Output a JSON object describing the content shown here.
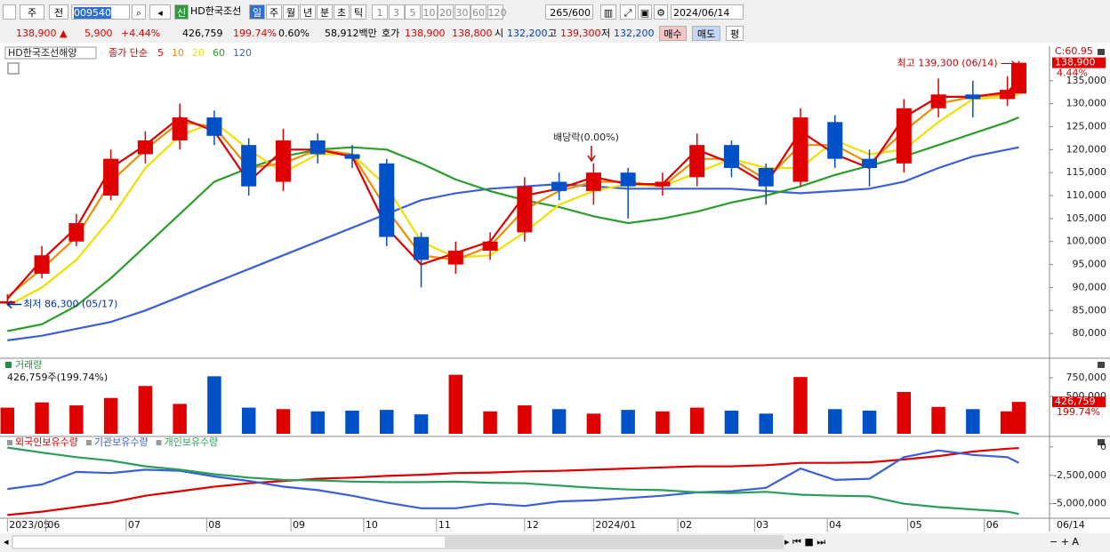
{
  "toolbar": {
    "period": "주",
    "prev": "전",
    "code": "009540",
    "badge": "신",
    "name": "HD한국조선",
    "units": [
      "일",
      "주",
      "월",
      "년",
      "분",
      "초",
      "틱"
    ],
    "minutes": [
      "1",
      "3",
      "5",
      "10",
      "20",
      "30",
      "60",
      "120"
    ],
    "count": "265",
    "max": "/600",
    "date": "2024/06/14"
  },
  "quote": {
    "price": "138,900 ▲",
    "change": "5,900",
    "rate": "+4.44%",
    "volume": "426,759",
    "volume_rate": "199.74%",
    "turnover": "0.60%",
    "amount": "58,912백만",
    "ask_label": "호가",
    "ask": "138,900",
    "bid": "138,800",
    "open_label": "시",
    "open": "132,200",
    "high_label": "고",
    "high": "139,300",
    "low_label": "저",
    "low": "132,200",
    "buy": "매수",
    "sell": "매도",
    "avg": "평"
  },
  "chart_data": [
    {
      "type": "candlestick",
      "title": "HD한국조선해양",
      "ma_label": "종가 단순",
      "x": [
        0,
        9,
        18,
        27,
        36,
        45,
        54,
        63,
        72,
        81,
        90,
        99,
        108,
        117,
        126,
        135,
        144,
        153,
        162,
        171,
        180,
        189,
        198,
        207,
        216,
        225,
        234,
        243,
        252,
        261,
        264
      ],
      "open": [
        86500,
        93000,
        100000,
        110000,
        119000,
        122000,
        127000,
        121000,
        113000,
        122000,
        119000,
        117000,
        101000,
        95000,
        98000,
        102000,
        113000,
        111000,
        115000,
        112000,
        114000,
        121000,
        116000,
        113000,
        126000,
        118000,
        117000,
        129000,
        132000,
        131000,
        132200
      ],
      "high": [
        88500,
        99000,
        106000,
        120000,
        124000,
        130000,
        128500,
        122500,
        124500,
        123500,
        121000,
        118000,
        102000,
        100000,
        102000,
        114000,
        115000,
        117000,
        116000,
        115000,
        123500,
        122000,
        117000,
        129000,
        127500,
        120000,
        131000,
        135500,
        135000,
        136000,
        139300
      ],
      "low": [
        86300,
        92000,
        99000,
        109000,
        117000,
        120000,
        121000,
        110000,
        111000,
        117000,
        116000,
        99000,
        90000,
        93000,
        96000,
        100000,
        109000,
        108000,
        105000,
        110000,
        112000,
        114000,
        108000,
        112000,
        116000,
        112000,
        115000,
        127000,
        127000,
        129500,
        132200
      ],
      "close": [
        87000,
        97000,
        104000,
        118000,
        122000,
        127000,
        123000,
        112000,
        122000,
        119000,
        118000,
        101000,
        96000,
        98000,
        100000,
        112000,
        111000,
        115000,
        112000,
        113000,
        121000,
        116000,
        112000,
        127000,
        118000,
        116000,
        129000,
        132000,
        131000,
        133000,
        138900
      ],
      "up_color": "#e00000",
      "down_color": "#0050c8",
      "series": [
        {
          "name": "5",
          "color": "#dd0000",
          "values": [
            87500,
            96000,
            103000,
            116000,
            121000,
            127000,
            124000,
            113000,
            120000,
            120000,
            118500,
            103000,
            95000,
            97500,
            100000,
            110000,
            111500,
            114000,
            112500,
            112500,
            120000,
            117000,
            112500,
            124000,
            119000,
            116000,
            127000,
            131500,
            131500,
            132500,
            135000
          ]
        },
        {
          "name": "10",
          "color": "#f08c00",
          "values": [
            88000,
            94000,
            101000,
            113000,
            120000,
            126000,
            125000,
            116000,
            117000,
            120000,
            119000,
            107000,
            97000,
            96000,
            99000,
            107000,
            111000,
            113000,
            113000,
            112000,
            118000,
            118000,
            113500,
            121000,
            121000,
            117000,
            124000,
            130000,
            131500,
            132000,
            133500
          ]
        },
        {
          "name": "20",
          "color": "#f0e000",
          "values": [
            86000,
            90000,
            96000,
            105000,
            116000,
            123000,
            126000,
            120000,
            115000,
            119000,
            119000,
            112000,
            100000,
            96500,
            97000,
            102000,
            108000,
            111000,
            112500,
            112000,
            115000,
            118000,
            116000,
            116000,
            122000,
            119000,
            120000,
            126000,
            131000,
            131500,
            132000
          ]
        },
        {
          "name": "60",
          "color": "#2a9d2a",
          "values": [
            80500,
            82000,
            86000,
            92000,
            99000,
            106000,
            113000,
            116000,
            118500,
            120000,
            120500,
            120000,
            117000,
            113500,
            111000,
            109000,
            107500,
            105500,
            104000,
            105000,
            106500,
            108500,
            110000,
            112000,
            114500,
            116500,
            118500,
            121000,
            123500,
            126000,
            127000
          ]
        },
        {
          "name": "120",
          "color": "#3a5fd8",
          "values": [
            78500,
            79500,
            81000,
            82500,
            85000,
            88000,
            91000,
            94000,
            97000,
            100000,
            103000,
            106000,
            109000,
            110500,
            111500,
            112000,
            112500,
            112000,
            111500,
            111500,
            111500,
            111500,
            111000,
            110500,
            111000,
            111500,
            113000,
            116000,
            118500,
            120000,
            120500
          ]
        }
      ],
      "xlim": [
        -1,
        272
      ],
      "ylim": [
        74800,
        142500
      ],
      "yticks": [
        {
          "value": 80000,
          "label": "80,000"
        },
        {
          "value": 85000,
          "label": "85,000"
        },
        {
          "value": 90000,
          "label": "90,000"
        },
        {
          "value": 95000,
          "label": "95,000"
        },
        {
          "value": 100000,
          "label": "100,000"
        },
        {
          "value": 105000,
          "label": "105,000"
        },
        {
          "value": 110000,
          "label": "110,000"
        },
        {
          "value": 115000,
          "label": "115,000"
        },
        {
          "value": 120000,
          "label": "120,000"
        },
        {
          "value": 125000,
          "label": "125,000"
        },
        {
          "value": 130000,
          "label": "130,000"
        },
        {
          "value": 135000,
          "label": "135,000"
        }
      ],
      "max_label": "최고 139,300 (06/14)",
      "min_label": "최저 86,300 (05/17)",
      "dividend_label": "배당락(0.00%)",
      "c_label": "C:60.95",
      "current_label": "138,900",
      "change_label": "4.44%"
    },
    {
      "type": "bar",
      "title": "거래량",
      "subtitle": "426,759주(199.74%)",
      "values": [
        350000,
        420000,
        380000,
        480000,
        640000,
        400000,
        770000,
        350000,
        330000,
        300000,
        310000,
        320000,
        260000,
        790000,
        300000,
        380000,
        330000,
        270000,
        320000,
        300000,
        350000,
        310000,
        270000,
        760000,
        330000,
        310000,
        560000,
        360000,
        330000,
        300000,
        426759
      ],
      "ylim": [
        0,
        1000000
      ],
      "yticks": [
        {
          "value": 500000,
          "label": "500,000"
        },
        {
          "value": 750000,
          "label": "750,000"
        }
      ],
      "current_label": "426,759",
      "rate_label": "199.74%"
    },
    {
      "type": "line",
      "series": [
        {
          "name": "외국인보유수량",
          "color": "#dd0000",
          "values": [
            -6000000,
            -5700000,
            -5300000,
            -4900000,
            -4300000,
            -3900000,
            -3500000,
            -3200000,
            -3000000,
            -2800000,
            -2700000,
            -2550000,
            -2450000,
            -2300000,
            -2250000,
            -2150000,
            -2100000,
            -2000000,
            -1900000,
            -1800000,
            -1700000,
            -1700000,
            -1600000,
            -1400000,
            -1400000,
            -1350000,
            -1100000,
            -800000,
            -400000,
            -150000,
            -100000
          ]
        },
        {
          "name": "기관보유수량",
          "color": "#3a5fd8",
          "values": [
            -3700000,
            -3300000,
            -2200000,
            -2300000,
            -2000000,
            -2100000,
            -2600000,
            -3000000,
            -3500000,
            -3800000,
            -4300000,
            -4900000,
            -5400000,
            -5400000,
            -5000000,
            -5200000,
            -4800000,
            -4700000,
            -4500000,
            -4300000,
            -4000000,
            -3900000,
            -3600000,
            -1900000,
            -2900000,
            -2800000,
            -900000,
            -300000,
            -700000,
            -900000,
            -1400000
          ]
        },
        {
          "name": "개인보유수량",
          "color": "#2a9d5a",
          "values": [
            -50000,
            -500000,
            -900000,
            -1200000,
            -1700000,
            -2000000,
            -2400000,
            -2700000,
            -2900000,
            -2950000,
            -3050000,
            -3100000,
            -3100000,
            -3050000,
            -3150000,
            -3200000,
            -3400000,
            -3600000,
            -3750000,
            -3800000,
            -4000000,
            -4050000,
            -3950000,
            -4200000,
            -4300000,
            -4350000,
            -5000000,
            -5300000,
            -5500000,
            -5700000,
            -5900000
          ]
        }
      ],
      "ylim": [
        -6200000,
        850000
      ],
      "yticks": [
        0,
        {
          "value": -2500000,
          "label": "-2,500,000"
        },
        {
          "value": -5000000,
          "label": "-5,000,000"
        }
      ],
      "xticks": [
        {
          "value": 0,
          "label": "2023/05"
        },
        {
          "value": 10,
          "label": "06"
        },
        {
          "value": 31,
          "label": "07"
        },
        {
          "value": 52,
          "label": "08"
        },
        {
          "value": 74,
          "label": "09"
        },
        {
          "value": 93,
          "label": "10"
        },
        {
          "value": 112,
          "label": "11"
        },
        {
          "value": 135,
          "label": "12"
        },
        {
          "value": 153,
          "label": "2024/01"
        },
        {
          "value": 175,
          "label": "02"
        },
        {
          "value": 195,
          "label": "03"
        },
        {
          "value": 214,
          "label": "04"
        },
        {
          "value": 235,
          "label": "05"
        },
        {
          "value": 255,
          "label": "06"
        }
      ],
      "last_date": "06/14"
    }
  ]
}
